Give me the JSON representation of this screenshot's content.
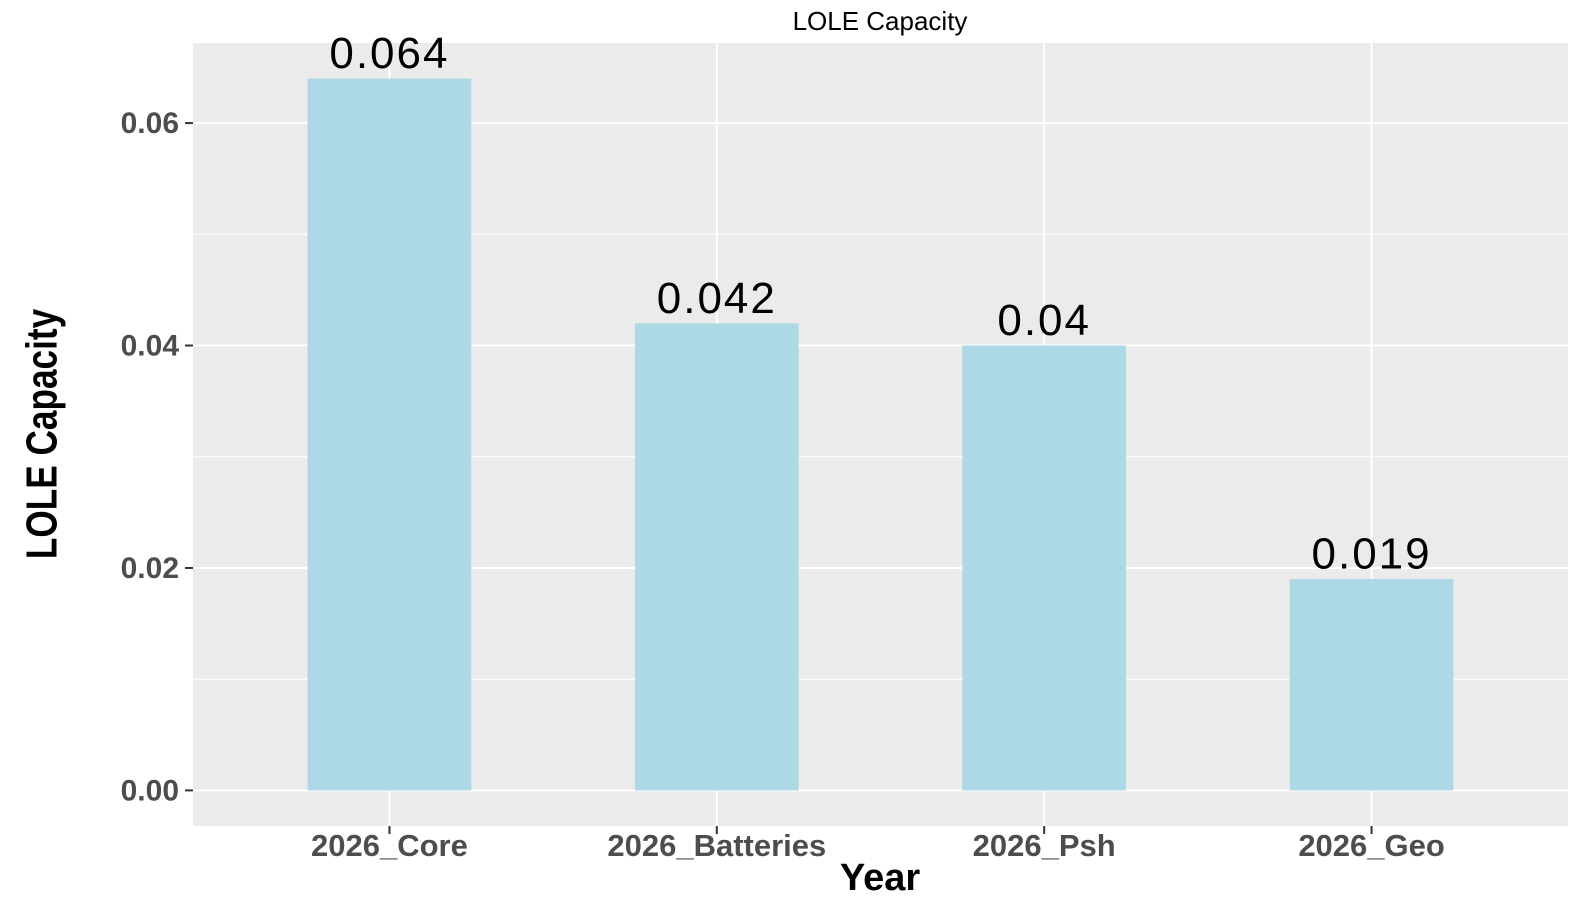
{
  "chart_data": {
    "type": "bar",
    "title": "LOLE Capacity",
    "x_label": "Year",
    "y_label": "LOLE Capacity",
    "categories": [
      "2026_Core",
      "2026_Batteries",
      "2026_Psh",
      "2026_Geo"
    ],
    "values": [
      0.064,
      0.042,
      0.04,
      0.019
    ],
    "color": "#add8e6",
    "ylim": [
      -0.0032,
      0.0672
    ],
    "yticks": [
      {
        "value": 0,
        "label": "0.00"
      },
      0.02,
      0.04,
      0.06
    ],
    "grid": true
  }
}
